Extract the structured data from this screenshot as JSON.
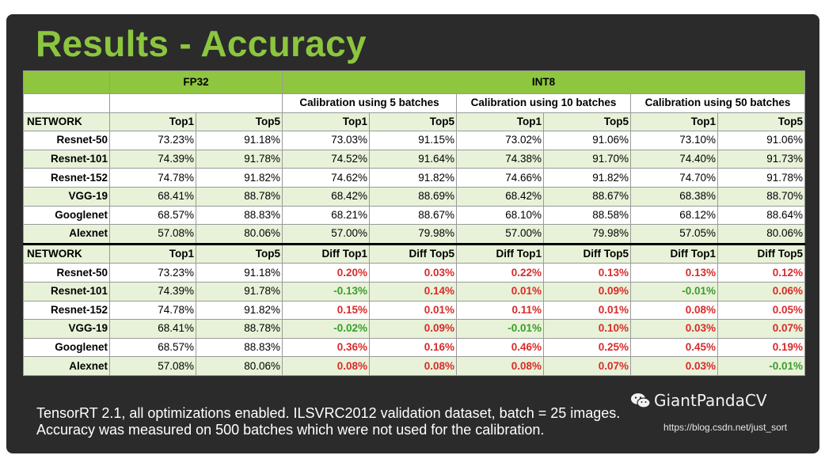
{
  "title": "Results - Accuracy",
  "groups": {
    "fp32": "FP32",
    "int8": "INT8"
  },
  "calibrations": [
    "Calibration using 5 batches",
    "Calibration using 10 batches",
    "Calibration using 50 batches"
  ],
  "header_top": [
    "NETWORK",
    "Top1",
    "Top5",
    "Top1",
    "Top5",
    "Top1",
    "Top5",
    "Top1",
    "Top5"
  ],
  "rows_top": [
    {
      "net": "Resnet-50",
      "vals": [
        "73.23%",
        "91.18%",
        "73.03%",
        "91.15%",
        "73.02%",
        "91.06%",
        "73.10%",
        "91.06%"
      ]
    },
    {
      "net": "Resnet-101",
      "vals": [
        "74.39%",
        "91.78%",
        "74.52%",
        "91.64%",
        "74.38%",
        "91.70%",
        "74.40%",
        "91.73%"
      ]
    },
    {
      "net": "Resnet-152",
      "vals": [
        "74.78%",
        "91.82%",
        "74.62%",
        "91.82%",
        "74.66%",
        "91.82%",
        "74.70%",
        "91.78%"
      ]
    },
    {
      "net": "VGG-19",
      "vals": [
        "68.41%",
        "88.78%",
        "68.42%",
        "88.69%",
        "68.42%",
        "88.67%",
        "68.38%",
        "88.70%"
      ]
    },
    {
      "net": "Googlenet",
      "vals": [
        "68.57%",
        "88.83%",
        "68.21%",
        "88.67%",
        "68.10%",
        "88.58%",
        "68.12%",
        "88.64%"
      ]
    },
    {
      "net": "Alexnet",
      "vals": [
        "57.08%",
        "80.06%",
        "57.00%",
        "79.98%",
        "57.00%",
        "79.98%",
        "57.05%",
        "80.06%"
      ]
    }
  ],
  "header_bottom": [
    "NETWORK",
    "Top1",
    "Top5",
    "Diff Top1",
    "Diff Top5",
    "Diff Top1",
    "Diff Top5",
    "Diff Top1",
    "Diff Top5"
  ],
  "rows_bottom": [
    {
      "net": "Resnet-50",
      "vals": [
        "73.23%",
        "91.18%",
        "0.20%",
        "0.03%",
        "0.22%",
        "0.13%",
        "0.13%",
        "0.12%"
      ]
    },
    {
      "net": "Resnet-101",
      "vals": [
        "74.39%",
        "91.78%",
        "-0.13%",
        "0.14%",
        "0.01%",
        "0.09%",
        "-0.01%",
        "0.06%"
      ]
    },
    {
      "net": "Resnet-152",
      "vals": [
        "74.78%",
        "91.82%",
        "0.15%",
        "0.01%",
        "0.11%",
        "0.01%",
        "0.08%",
        "0.05%"
      ]
    },
    {
      "net": "VGG-19",
      "vals": [
        "68.41%",
        "88.78%",
        "-0.02%",
        "0.09%",
        "-0.01%",
        "0.10%",
        "0.03%",
        "0.07%"
      ]
    },
    {
      "net": "Googlenet",
      "vals": [
        "68.57%",
        "88.83%",
        "0.36%",
        "0.16%",
        "0.46%",
        "0.25%",
        "0.45%",
        "0.19%"
      ]
    },
    {
      "net": "Alexnet",
      "vals": [
        "57.08%",
        "80.06%",
        "0.08%",
        "0.08%",
        "0.08%",
        "0.07%",
        "0.03%",
        "-0.01%"
      ]
    }
  ],
  "footnote": {
    "line1": "TensorRT 2.1, all optimizations enabled. ILSVRC2012 validation dataset, batch = 25 images.",
    "line2": "Accuracy was measured on 500 batches which were not used for the calibration."
  },
  "watermark": {
    "brand": "GiantPandaCV",
    "url": "https://blog.csdn.net/just_sort",
    "icon": "wechat-icon"
  },
  "colors": {
    "title": "#8cc63f",
    "header_green": "#8fc63f",
    "row_tint": "#e8f2d8",
    "positive_diff": "#d92b2b",
    "negative_diff": "#3a9d2a",
    "background": "#2b2b2b"
  }
}
